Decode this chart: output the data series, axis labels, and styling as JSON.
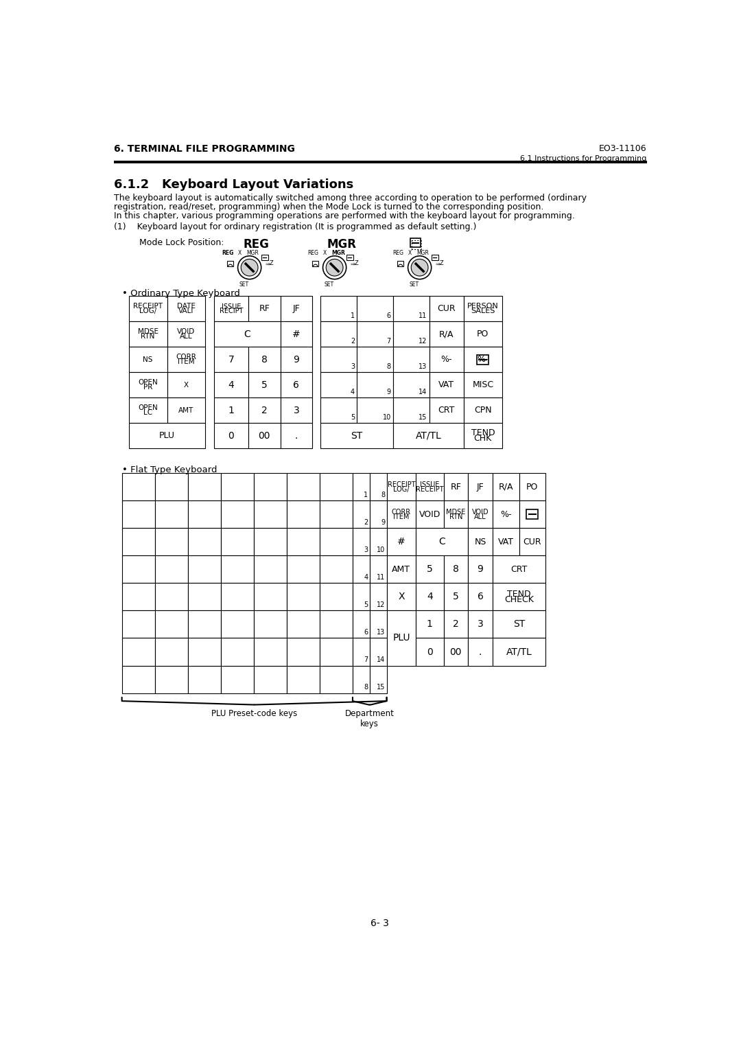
{
  "page_header_left": "6. TERMINAL FILE PROGRAMMING",
  "page_header_right": "EO3-11106",
  "section_header_right": "6.1 Instructions for Programming",
  "section_title": "6.1.2   Keyboard Layout Variations",
  "body_text": [
    "The keyboard layout is automatically switched among three according to operation to be performed (ordinary",
    "registration, read/reset, programming) when the Mode Lock is turned to the corresponding position.",
    "In this chapter, various programming operations are performed with the keyboard layout for programming."
  ],
  "item1_text": "(1)    Keyboard layout for ordinary registration (It is programmed as default setting.)",
  "mode_lock_label": "Mode Lock Position:",
  "ordinary_label": "• Ordinary Type Keyboard",
  "flat_label": "• Flat Type Keyboard",
  "page_footer": "6- 3",
  "bg_color": "#ffffff"
}
